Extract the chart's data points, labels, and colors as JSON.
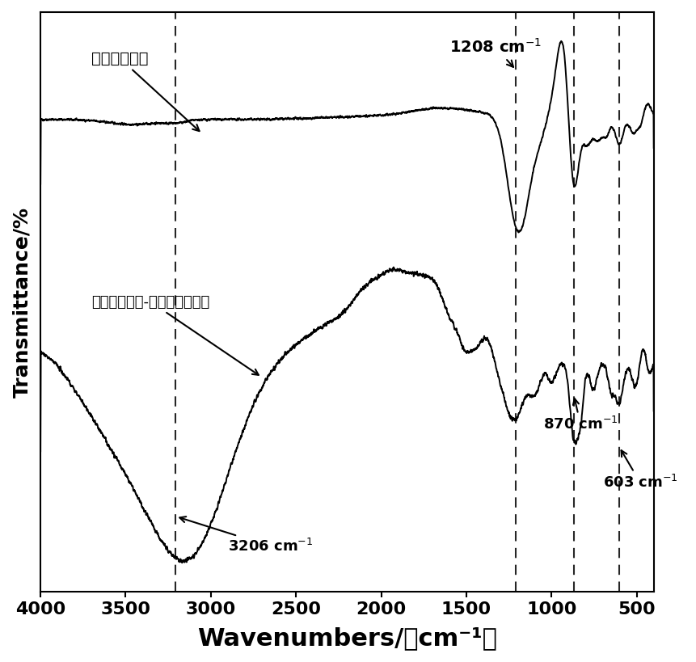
{
  "xlabel": "Wavenumbers/（cm⁻¹）",
  "ylabel": "Transmittance/%",
  "xlim": [
    4000,
    400
  ],
  "xlabel_fontsize": 22,
  "ylabel_fontsize": 18,
  "tick_fontsize": 16,
  "background_color": "#ffffff",
  "label_upper": "六氯环三磷腓",
  "label_lower": "六氯环三磷腓-对苯二胺缩聚物"
}
